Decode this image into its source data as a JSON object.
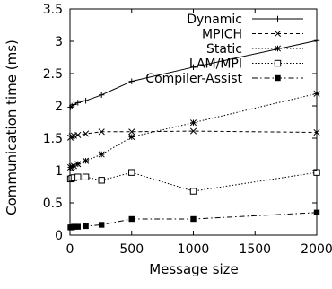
{
  "chart_data": {
    "type": "line",
    "xlabel": "Message size",
    "ylabel": "Communication time (ms)",
    "xlim": [
      0,
      2000
    ],
    "ylim": [
      0,
      3.5
    ],
    "xticks": [
      0,
      500,
      1000,
      1500,
      2000
    ],
    "yticks": [
      0,
      0.5,
      1,
      1.5,
      2,
      2.5,
      3,
      3.5
    ],
    "xtick_labels": [
      "0",
      "500",
      "1000",
      "1500",
      "2000"
    ],
    "ytick_labels": [
      "0",
      "0.5",
      "1",
      "1.5",
      "2",
      "2.5",
      "3",
      "3.5"
    ],
    "grid": false,
    "legend_position": "top-right",
    "series": [
      {
        "name": "Dynamic",
        "marker": "plus",
        "dash": "solid",
        "x": [
          4,
          16,
          32,
          64,
          128,
          256,
          500,
          1000,
          2000
        ],
        "y": [
          1.98,
          2.0,
          2.02,
          2.05,
          2.08,
          2.17,
          2.38,
          2.6,
          3.01
        ]
      },
      {
        "name": "MPICH",
        "marker": "cross",
        "dash": "dashed",
        "x": [
          4,
          16,
          32,
          64,
          128,
          256,
          500,
          1000,
          2000
        ],
        "y": [
          1.51,
          1.53,
          1.54,
          1.55,
          1.57,
          1.6,
          1.6,
          1.61,
          1.59
        ]
      },
      {
        "name": "Static",
        "marker": "star",
        "dash": "dotted",
        "x": [
          4,
          16,
          32,
          64,
          128,
          256,
          500,
          1000,
          2000
        ],
        "y": [
          1.05,
          1.06,
          1.07,
          1.1,
          1.15,
          1.25,
          1.52,
          1.74,
          2.19
        ]
      },
      {
        "name": "LAM/MPI",
        "marker": "square",
        "dash": "dotted",
        "x": [
          4,
          16,
          32,
          64,
          128,
          256,
          500,
          1000,
          2000
        ],
        "y": [
          0.87,
          0.88,
          0.89,
          0.9,
          0.9,
          0.85,
          0.97,
          0.68,
          0.97
        ]
      },
      {
        "name": "Compiler-Assist",
        "marker": "filled-square",
        "dash": "dashdot",
        "x": [
          4,
          16,
          32,
          64,
          128,
          256,
          500,
          1000,
          2000
        ],
        "y": [
          0.12,
          0.12,
          0.13,
          0.13,
          0.14,
          0.16,
          0.25,
          0.25,
          0.35
        ]
      }
    ]
  }
}
